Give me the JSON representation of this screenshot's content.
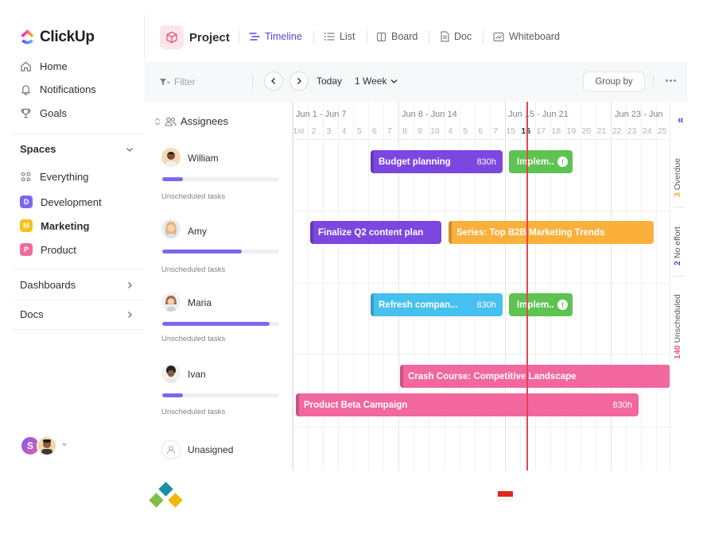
{
  "app": {
    "name": "ClickUp",
    "colors": {
      "accent": "#5a45d6",
      "today_line": "#e8424f"
    }
  },
  "sidebar": {
    "nav": [
      {
        "label": "Home",
        "icon": "home-icon"
      },
      {
        "label": "Notifications",
        "icon": "bell-icon"
      },
      {
        "label": "Goals",
        "icon": "trophy-icon"
      }
    ],
    "spaces_label": "Spaces",
    "everything_label": "Everything",
    "spaces": [
      {
        "label": "Development",
        "badge": "D",
        "color": "#7b68ee"
      },
      {
        "label": "Marketing",
        "badge": "M",
        "color": "#f8c21b"
      },
      {
        "label": "Product",
        "badge": "P",
        "color": "#f06a9b"
      }
    ],
    "dashboards_label": "Dashboards",
    "docs_label": "Docs",
    "user_initial": "S"
  },
  "header": {
    "project_title": "Project",
    "tabs": [
      {
        "label": "Timeline",
        "icon": "timeline-icon",
        "active": true
      },
      {
        "label": "List",
        "icon": "list-icon",
        "active": false
      },
      {
        "label": "Board",
        "icon": "board-icon",
        "active": false
      },
      {
        "label": "Doc",
        "icon": "doc-icon",
        "active": false
      },
      {
        "label": "Whiteboard",
        "icon": "whiteboard-icon",
        "active": false
      }
    ]
  },
  "toolbar": {
    "filter_label": "Filter",
    "today_label": "Today",
    "range_label": "1 Week",
    "group_by_label": "Group by"
  },
  "timeline": {
    "assignees_label": "Assignees",
    "weeks": [
      "Jun 1 - Jun 7",
      "Jun 8 - Jun 14",
      "Jun 15 - Jun 21",
      "Jun 23 - Jun"
    ],
    "days": [
      "1st",
      "2",
      "3",
      "4",
      "5",
      "6",
      "7",
      "8",
      "9",
      "10",
      "4",
      "5",
      "6",
      "7",
      "15",
      "16",
      "17",
      "18",
      "19",
      "20",
      "21",
      "22",
      "23",
      "24",
      "25"
    ],
    "today_day": "16",
    "rows": [
      {
        "name": "William",
        "progress": 0.18,
        "unscheduled": "Unscheduled tasks"
      },
      {
        "name": "Amy",
        "progress": 0.68,
        "unscheduled": "Unscheduled tasks"
      },
      {
        "name": "Maria",
        "progress": 0.92,
        "unscheduled": "Unscheduled tasks"
      },
      {
        "name": "Ivan",
        "progress": 0.18,
        "unscheduled": "Unscheduled tasks"
      },
      {
        "name": "Unasigned"
      }
    ],
    "tasks": [
      {
        "label": "Budget planning",
        "estimate": "830h",
        "color": "#7b47e0"
      },
      {
        "label": "Implem..",
        "color": "#5ec350",
        "info": "!"
      },
      {
        "label": "Finalize Q2 content plan",
        "color": "#7b47e0"
      },
      {
        "label": "Series: Top B2B Marketing Trends",
        "color": "#fbb03b"
      },
      {
        "label": "Refresh compan...",
        "estimate": "830h",
        "color": "#45c0ef"
      },
      {
        "label": "Implem..",
        "color": "#5ec350",
        "info": "!"
      },
      {
        "label": "Crash Course: Competitive Landscape",
        "color": "#f2679d"
      },
      {
        "label": "Product Beta Campaign",
        "estimate": "830h",
        "color": "#f2679d"
      }
    ]
  },
  "rail": {
    "overdue": {
      "count": "3",
      "label": "Overdue",
      "color": "#f5a623"
    },
    "no_effort": {
      "count": "2",
      "label": "No effort",
      "color": "#5a45d6"
    },
    "unscheduled": {
      "count": "140",
      "label": "Unscheduled",
      "color": "#e84f8e"
    }
  }
}
